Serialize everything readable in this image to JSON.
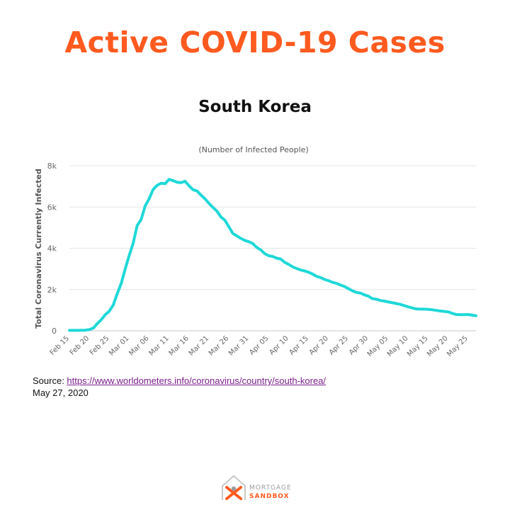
{
  "header": {
    "title": "Active COVID-19 Cases",
    "subtitle": "South Korea"
  },
  "chart_data": {
    "type": "line",
    "title": "",
    "subtitle": "(Number of Infected People)",
    "xlabel": "",
    "ylabel": "Total Coronavirus Currently Infected",
    "ylim": [
      0,
      8000
    ],
    "yticks": [
      0,
      2000,
      4000,
      6000,
      8000
    ],
    "ytick_labels": [
      "0",
      "2k",
      "4k",
      "6k",
      "8k"
    ],
    "grid": true,
    "legend": "none",
    "x_tick_labels": [
      "Feb 15",
      "Feb 20",
      "Feb 25",
      "Mar 01",
      "Mar 06",
      "Mar 11",
      "Mar 16",
      "Mar 21",
      "Mar 26",
      "Mar 31",
      "Apr 05",
      "Apr 10",
      "Apr 15",
      "Apr 20",
      "Apr 25",
      "Apr 30",
      "May 05",
      "May 10",
      "May 15",
      "May 20",
      "May 25"
    ],
    "series": [
      {
        "name": "",
        "color": "#1fd8d8",
        "x": [
          "Feb 15",
          "Feb 16",
          "Feb 17",
          "Feb 18",
          "Feb 19",
          "Feb 20",
          "Feb 21",
          "Feb 22",
          "Feb 23",
          "Feb 24",
          "Feb 25",
          "Feb 26",
          "Feb 27",
          "Feb 28",
          "Feb 29",
          "Mar 01",
          "Mar 02",
          "Mar 03",
          "Mar 04",
          "Mar 05",
          "Mar 06",
          "Mar 07",
          "Mar 08",
          "Mar 09",
          "Mar 10",
          "Mar 11",
          "Mar 12",
          "Mar 13",
          "Mar 14",
          "Mar 15",
          "Mar 16",
          "Mar 17",
          "Mar 18",
          "Mar 19",
          "Mar 20",
          "Mar 21",
          "Mar 22",
          "Mar 23",
          "Mar 24",
          "Mar 25",
          "Mar 26",
          "Mar 27",
          "Mar 28",
          "Mar 29",
          "Mar 30",
          "Mar 31",
          "Apr 01",
          "Apr 02",
          "Apr 03",
          "Apr 04",
          "Apr 05",
          "Apr 06",
          "Apr 07",
          "Apr 08",
          "Apr 09",
          "Apr 10",
          "Apr 11",
          "Apr 12",
          "Apr 13",
          "Apr 14",
          "Apr 15",
          "Apr 16",
          "Apr 17",
          "Apr 18",
          "Apr 19",
          "Apr 20",
          "Apr 21",
          "Apr 22",
          "Apr 23",
          "Apr 24",
          "Apr 25",
          "Apr 26",
          "Apr 27",
          "Apr 28",
          "Apr 29",
          "Apr 30",
          "May 01",
          "May 02",
          "May 03",
          "May 04",
          "May 05",
          "May 06",
          "May 07",
          "May 08",
          "May 09",
          "May 10",
          "May 11",
          "May 12",
          "May 13",
          "May 14",
          "May 15",
          "May 16",
          "May 17",
          "May 18",
          "May 19",
          "May 20",
          "May 21",
          "May 22",
          "May 23",
          "May 24",
          "May 25",
          "May 26",
          "May 27"
        ],
        "values": [
          20,
          20,
          20,
          25,
          30,
          60,
          130,
          350,
          540,
          780,
          950,
          1250,
          1800,
          2300,
          3000,
          3650,
          4250,
          5100,
          5400,
          6050,
          6400,
          6850,
          7050,
          7150,
          7130,
          7340,
          7280,
          7200,
          7180,
          7250,
          7030,
          6840,
          6780,
          6580,
          6400,
          6180,
          5980,
          5800,
          5520,
          5360,
          5040,
          4720,
          4600,
          4480,
          4380,
          4320,
          4230,
          4040,
          3920,
          3740,
          3640,
          3600,
          3520,
          3480,
          3320,
          3220,
          3100,
          3020,
          2950,
          2900,
          2840,
          2750,
          2640,
          2580,
          2490,
          2430,
          2350,
          2300,
          2220,
          2150,
          2040,
          1940,
          1860,
          1830,
          1740,
          1680,
          1560,
          1530,
          1470,
          1440,
          1400,
          1360,
          1320,
          1280,
          1220,
          1160,
          1110,
          1060,
          1050,
          1050,
          1040,
          1020,
          990,
          960,
          940,
          920,
          850,
          790,
          780,
          780,
          790,
          760,
          730
        ]
      }
    ]
  },
  "source": {
    "prefix": "Source: ",
    "url": "https://www.worldometers.info/coronavirus/country/south-korea/",
    "date": "May 27, 2020"
  },
  "logo": {
    "line1": "MORTGAGE",
    "line2": "SANDBOX",
    "accent": "#ff5a1f"
  }
}
